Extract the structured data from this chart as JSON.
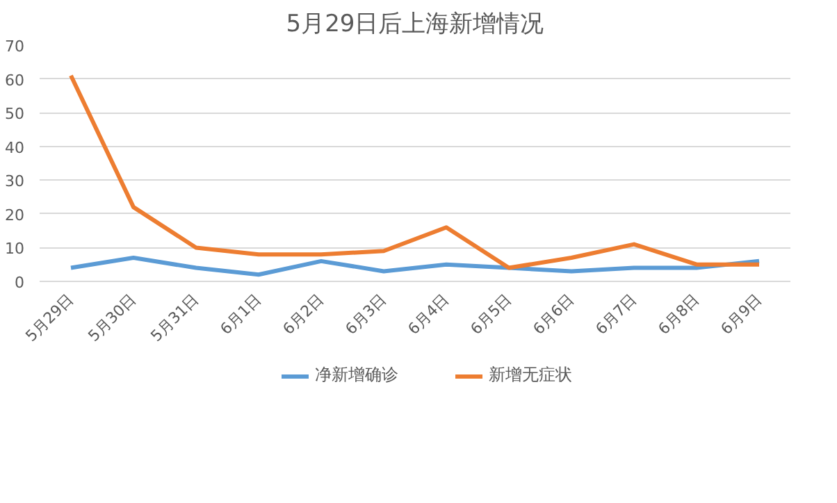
{
  "chart_data": {
    "type": "line",
    "title": "5月29日后上海新增情况",
    "categories": [
      "5月29日",
      "5月30日",
      "5月31日",
      "6月1日",
      "6月2日",
      "6月3日",
      "6月4日",
      "6月5日",
      "6月6日",
      "6月7日",
      "6月8日",
      "6月9日"
    ],
    "series": [
      {
        "name": "净新增确诊",
        "color": "#5b9bd5",
        "values": [
          4,
          7,
          4,
          2,
          6,
          3,
          5,
          4,
          3,
          4,
          4,
          6
        ]
      },
      {
        "name": "新增无症状",
        "color": "#ed7d31",
        "values": [
          61,
          22,
          10,
          8,
          8,
          9,
          16,
          4,
          7,
          11,
          5,
          5
        ]
      }
    ],
    "ylim": [
      0,
      70
    ],
    "yticks": [
      0,
      10,
      20,
      30,
      40,
      50,
      60,
      70
    ],
    "grid": "y",
    "legend": "bottom",
    "marker": "none",
    "line_style": "solid"
  }
}
